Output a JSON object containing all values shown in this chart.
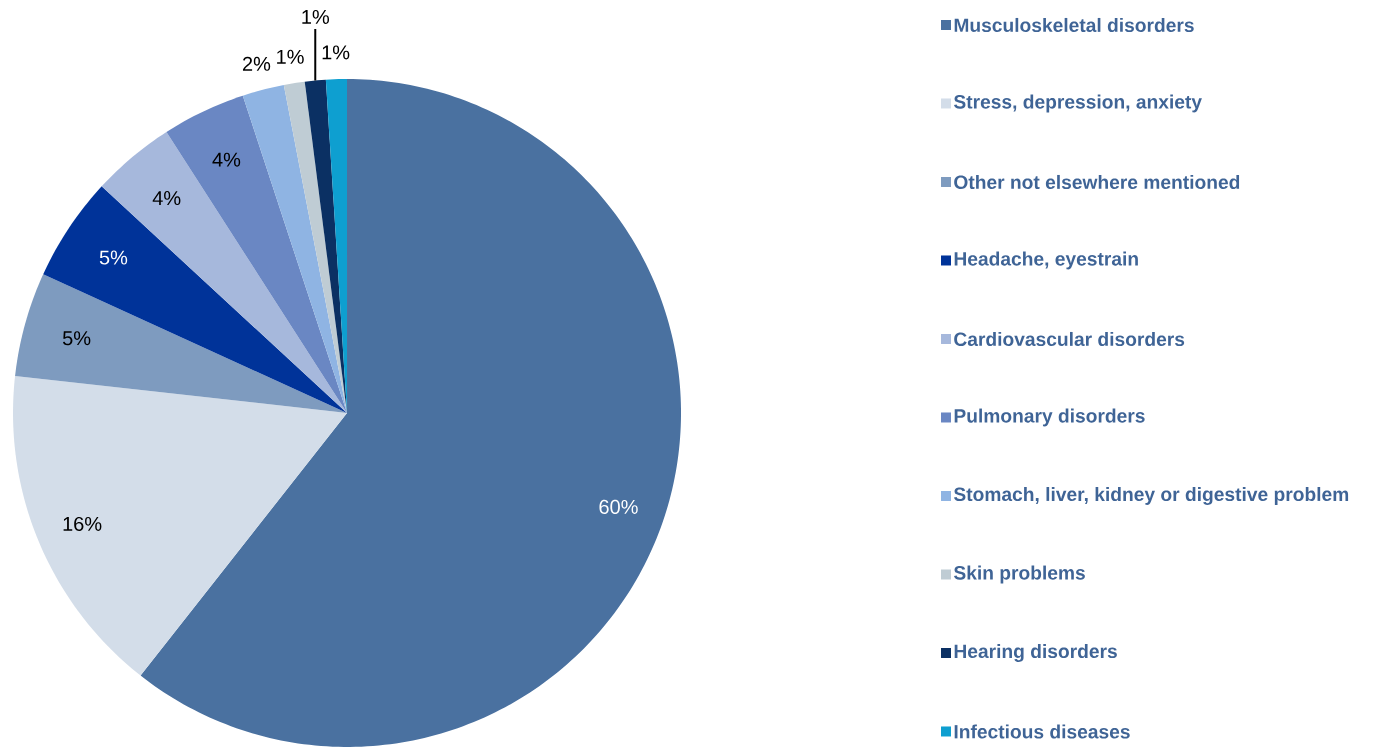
{
  "chart_data": {
    "type": "pie",
    "categories": [
      "Musculoskeletal disorders",
      "Stress, depression, anxiety",
      "Other not elsewhere mentioned",
      "Headache, eyestrain",
      "Cardiovascular disorders",
      "Pulmonary disorders",
      "Stomach, liver, kidney or digestive problem",
      "Skin problems",
      "Hearing disorders",
      "Infectious diseases"
    ],
    "values": [
      60,
      16,
      5,
      5,
      4,
      4,
      2,
      1,
      1,
      1
    ],
    "value_labels": [
      "60%",
      "16%",
      "5%",
      "5%",
      "4%",
      "4%",
      "2%",
      "1%",
      "1%",
      "1%"
    ],
    "colors": [
      "#4a71a0",
      "#d3dde9",
      "#7e9bbf",
      "#003399",
      "#a6b8dc",
      "#6a87c3",
      "#8fb4e3",
      "#bfccd4",
      "#0b3063",
      "#0e9fd0"
    ],
    "legend": "right"
  }
}
